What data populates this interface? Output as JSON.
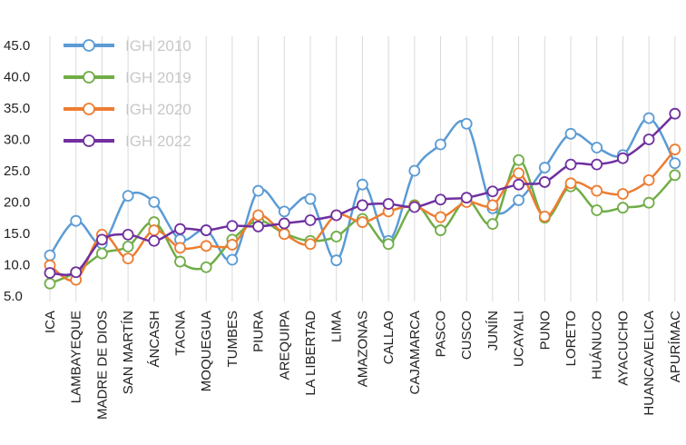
{
  "chart_data": {
    "type": "line",
    "categories": [
      "ICA",
      "LAMBAYEQUE",
      "MADRE DE DIOS",
      "SAN MARTÍN",
      "ÁNCASH",
      "TACNA",
      "MOQUEGUA",
      "TUMBES",
      "PIURA",
      "AREQUIPA",
      "LA LIBERTAD",
      "LIMA",
      "AMAZONAS",
      "CALLAO",
      "CAJAMARCA",
      "PASCO",
      "CUSCO",
      "JUNÍN",
      "UCAYALI",
      "PUNO",
      "LORETO",
      "HUÁNUCO",
      "AYACUCHO",
      "HUANCAVELICA",
      "APURÍMAC"
    ],
    "series": [
      {
        "name": "IGH 2010",
        "color": "#5b9bd5",
        "values": [
          11.5,
          17.0,
          13.4,
          21.0,
          20.0,
          14.0,
          15.5,
          10.8,
          21.8,
          18.5,
          20.5,
          10.7,
          22.8,
          13.8,
          25.0,
          29.2,
          32.5,
          19.0,
          20.3,
          25.5,
          30.9,
          28.7,
          27.5,
          33.4,
          26.2
        ]
      },
      {
        "name": "IGH 2019",
        "color": "#70ad47",
        "values": [
          7.0,
          8.8,
          11.8,
          12.9,
          16.8,
          10.5,
          9.6,
          14.0,
          17.0,
          15.0,
          13.8,
          14.5,
          17.3,
          13.3,
          19.5,
          15.5,
          20.3,
          16.5,
          26.7,
          17.5,
          22.5,
          18.7,
          19.1,
          19.9,
          24.3
        ]
      },
      {
        "name": "IGH 2020",
        "color": "#ed7d31",
        "values": [
          9.9,
          7.6,
          14.8,
          11.0,
          15.5,
          12.7,
          13.0,
          13.2,
          17.9,
          14.9,
          13.3,
          17.9,
          16.8,
          18.5,
          19.3,
          17.6,
          20.0,
          19.5,
          24.6,
          17.7,
          23.0,
          21.8,
          21.3,
          23.5,
          28.4
        ]
      },
      {
        "name": "IGH 2022",
        "color": "#7030a0",
        "values": [
          8.7,
          8.8,
          14.0,
          14.8,
          13.8,
          15.7,
          15.5,
          16.2,
          16.1,
          16.6,
          17.1,
          17.9,
          19.5,
          19.7,
          19.2,
          20.4,
          20.7,
          21.7,
          22.8,
          23.2,
          26.0,
          26.0,
          27.0,
          30.0,
          34.1
        ]
      }
    ],
    "ylim": [
      5,
      45
    ],
    "yticks": [
      {
        "value": 5,
        "label": "5.0"
      },
      {
        "value": 10,
        "label": "10.0"
      },
      {
        "value": 15,
        "label": "15.0"
      },
      {
        "value": 20,
        "label": "20.0"
      },
      {
        "value": 25,
        "label": "25.0"
      },
      {
        "value": 30,
        "label": "30.0"
      },
      {
        "value": 35,
        "label": "35.0"
      },
      {
        "value": 40,
        "label": "40.0"
      },
      {
        "value": 45,
        "label": "45.0"
      }
    ],
    "legend": "upper left"
  }
}
